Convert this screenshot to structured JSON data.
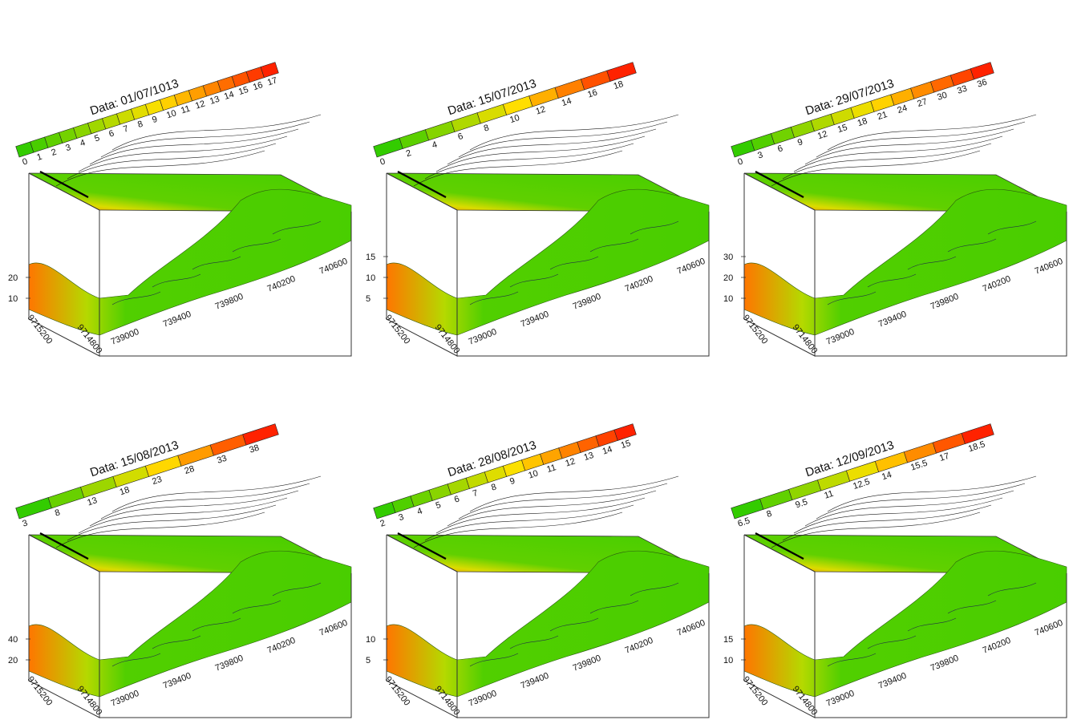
{
  "figure": {
    "z_axis_tick_labels_note": ""
  },
  "chart_data": [
    {
      "type": "heatmap",
      "title": "Data: 01/07/1013",
      "legend_ticks": [
        "0",
        "1",
        "2",
        "3",
        "4",
        "5",
        "6",
        "7",
        "8",
        "9",
        "10",
        "11",
        "12",
        "13",
        "14",
        "15",
        "16",
        "17"
      ],
      "z_ticks": [
        "10",
        "20"
      ],
      "easting_ticks": [
        "739000",
        "739400",
        "739800",
        "740200",
        "740600"
      ],
      "northing_ticks": [
        "9715200",
        "9714800"
      ],
      "colors": {
        "low": "#33cc00",
        "mid": "#ffe000",
        "high": "#ff2200"
      }
    },
    {
      "type": "heatmap",
      "title": "Data: 15/07/2013",
      "legend_ticks": [
        "0",
        "2",
        "4",
        "6",
        "8",
        "10",
        "12",
        "14",
        "16",
        "18"
      ],
      "z_ticks": [
        "5",
        "10",
        "15"
      ],
      "easting_ticks": [
        "739000",
        "739400",
        "739800",
        "740200",
        "740600"
      ],
      "northing_ticks": [
        "9715200",
        "9714800"
      ],
      "colors": {
        "low": "#33cc00",
        "mid": "#ffe000",
        "high": "#ff2200"
      }
    },
    {
      "type": "heatmap",
      "title": "Data: 29/07/2013",
      "legend_ticks": [
        "0",
        "3",
        "6",
        "9",
        "12",
        "15",
        "18",
        "21",
        "24",
        "27",
        "30",
        "33",
        "36"
      ],
      "z_ticks": [
        "10",
        "20",
        "30"
      ],
      "easting_ticks": [
        "739000",
        "739400",
        "739800",
        "740200",
        "740600"
      ],
      "northing_ticks": [
        "9715200",
        "9714800"
      ],
      "colors": {
        "low": "#33cc00",
        "mid": "#ffe000",
        "high": "#ff2200"
      }
    },
    {
      "type": "heatmap",
      "title": "Data: 15/08/2013",
      "legend_ticks": [
        "3",
        "8",
        "13",
        "18",
        "23",
        "28",
        "33",
        "38"
      ],
      "z_ticks": [
        "20",
        "40"
      ],
      "easting_ticks": [
        "739000",
        "739400",
        "739800",
        "740200",
        "740600"
      ],
      "northing_ticks": [
        "9715200",
        "9714800"
      ],
      "colors": {
        "low": "#33cc00",
        "mid": "#ffe000",
        "high": "#ff2200"
      }
    },
    {
      "type": "heatmap",
      "title": "Data: 28/08/2013",
      "legend_ticks": [
        "2",
        "3",
        "4",
        "5",
        "6",
        "7",
        "8",
        "9",
        "10",
        "11",
        "12",
        "13",
        "14",
        "15"
      ],
      "z_ticks": [
        "5",
        "10"
      ],
      "easting_ticks": [
        "739000",
        "739400",
        "739800",
        "740200",
        "740600"
      ],
      "northing_ticks": [
        "9715200",
        "9714800"
      ],
      "colors": {
        "low": "#33cc00",
        "mid": "#ffe000",
        "high": "#ff2200"
      }
    },
    {
      "type": "heatmap",
      "title": "Data: 12/09/2013",
      "legend_ticks": [
        "6.5",
        "8",
        "9.5",
        "11",
        "12.5",
        "14",
        "15.5",
        "17",
        "18.5"
      ],
      "z_ticks": [
        "10",
        "15"
      ],
      "easting_ticks": [
        "739000",
        "739400",
        "739800",
        "740200",
        "740600"
      ],
      "northing_ticks": [
        "9715200",
        "9714800"
      ],
      "colors": {
        "low": "#33cc00",
        "mid": "#ffe000",
        "high": "#ff2200"
      }
    }
  ]
}
